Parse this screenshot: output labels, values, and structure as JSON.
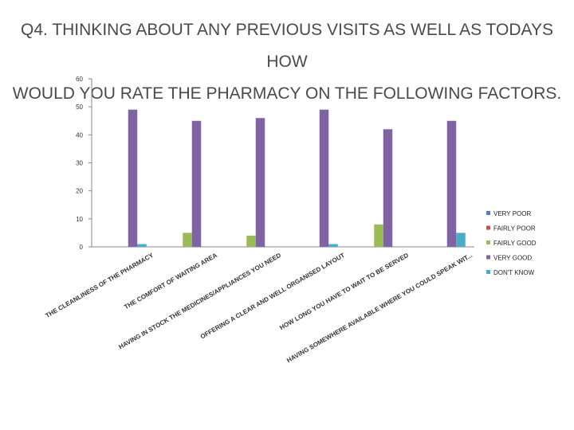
{
  "title": {
    "line1": "Q4. THINKING ABOUT ANY PREVIOUS VISITS AS WELL AS TODAYS HOW",
    "line2": "WOULD YOU RATE THE PHARMACY ON THE FOLLOWING FACTORS."
  },
  "chart_data": {
    "type": "bar",
    "title": "Q4. THINKING ABOUT ANY PREVIOUS VISITS AS WELL AS TODAYS HOW WOULD YOU RATE THE PHARMACY ON THE FOLLOWING FACTORS.",
    "xlabel": "",
    "ylabel": "",
    "ylim": [
      0,
      60
    ],
    "yticks": [
      0,
      10,
      20,
      30,
      40,
      50,
      60
    ],
    "grid": false,
    "legend_position": "right",
    "categories": [
      "THE CLEANLINESS OF THE PHARMACY",
      "THE COMFORT OF WAITING AREA",
      "HAVING IN STOCK THE MEDICINES/APPLIANCES YOU NEED",
      "OFFERING A CLEAR AND WELL ORGANISED LAYOUT",
      "HOW LONG YOU HAVE TO WAIT TO BE SERVED",
      "HAVING SOMEWHERE AVAILABLE WHERE YOU COULD SPEAK WIT..."
    ],
    "series": [
      {
        "name": "VERY POOR",
        "color": "#4f81bd",
        "values": [
          0,
          0,
          0,
          0,
          0,
          0
        ]
      },
      {
        "name": "FAIRLY POOR",
        "color": "#c0504d",
        "values": [
          0,
          0,
          0,
          0,
          0,
          0
        ]
      },
      {
        "name": "FAIRLY GOOD",
        "color": "#9bbb59",
        "values": [
          0,
          5,
          4,
          0,
          8,
          0
        ]
      },
      {
        "name": "VERY GOOD",
        "color": "#8064a2",
        "values": [
          49,
          45,
          46,
          49,
          42,
          45
        ]
      },
      {
        "name": "DON'T KNOW",
        "color": "#4bacc6",
        "values": [
          1,
          0,
          0,
          1,
          0,
          5
        ]
      }
    ]
  }
}
